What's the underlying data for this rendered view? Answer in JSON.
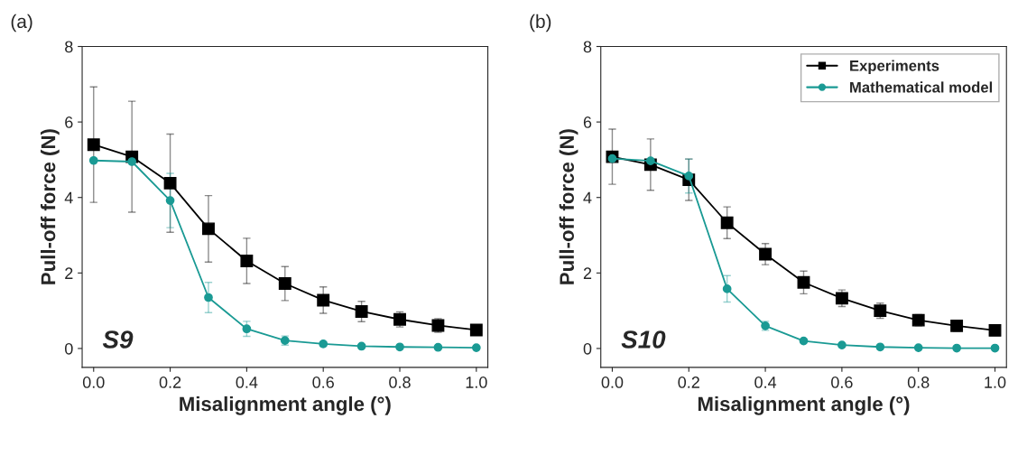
{
  "chart_data": [
    {
      "type": "line",
      "title": "(a)",
      "xlabel": "Misalignment angle (°)",
      "ylabel": "Pull-off force (N)",
      "annotations": [
        "S9"
      ],
      "x": [
        0.0,
        0.1,
        0.2,
        0.3,
        0.4,
        0.5,
        0.6,
        0.7,
        0.8,
        0.9,
        1.0
      ],
      "series": [
        {
          "color": "#000000",
          "marker": "square",
          "values": [
            5.4,
            5.08,
            4.38,
            3.17,
            2.32,
            1.72,
            1.28,
            0.98,
            0.77,
            0.61,
            0.49
          ],
          "errors": [
            1.53,
            1.47,
            1.3,
            0.88,
            0.6,
            0.45,
            0.35,
            0.27,
            0.2,
            0.18,
            0.12
          ]
        },
        {
          "color": "#1a9a94",
          "marker": "circle",
          "values": [
            4.98,
            4.95,
            3.92,
            1.35,
            0.52,
            0.21,
            0.12,
            0.06,
            0.04,
            0.03,
            0.02
          ],
          "errors": [
            null,
            null,
            0.72,
            0.4,
            0.2,
            0.12,
            0.06,
            null,
            null,
            null,
            null
          ]
        }
      ],
      "xlim": [
        -0.03,
        1.03
      ],
      "ylim": [
        -0.5,
        8
      ],
      "xticks": [
        {
          "value": 0,
          "label": "0.0"
        },
        {
          "value": 0.2,
          "label": "0.2"
        },
        {
          "value": 0.4,
          "label": "0.4"
        },
        {
          "value": 0.6,
          "label": "0.6"
        },
        {
          "value": 0.8,
          "label": "0.8"
        },
        {
          "value": 1.0,
          "label": "1.0"
        }
      ],
      "yticks": [
        0,
        2,
        4,
        6,
        8
      ],
      "grid": false,
      "legend": false
    },
    {
      "type": "line",
      "title": "(b)",
      "xlabel": "Misalignment angle (°)",
      "ylabel": "Pull-off force (N)",
      "annotations": [
        "S10"
      ],
      "x": [
        0.0,
        0.1,
        0.2,
        0.3,
        0.4,
        0.5,
        0.6,
        0.7,
        0.8,
        0.9,
        1.0
      ],
      "series": [
        {
          "name": "Experiments",
          "color": "#000000",
          "marker": "square",
          "values": [
            5.08,
            4.87,
            4.47,
            3.33,
            2.5,
            1.75,
            1.33,
            1.0,
            0.75,
            0.6,
            0.48
          ],
          "errors": [
            0.73,
            0.68,
            0.55,
            0.42,
            0.28,
            0.3,
            0.22,
            0.2,
            0.15,
            0.14,
            0.12
          ]
        },
        {
          "name": "Mathematical model",
          "color": "#1a9a94",
          "marker": "circle",
          "values": [
            5.03,
            4.97,
            4.57,
            1.58,
            0.6,
            0.2,
            0.09,
            0.04,
            0.02,
            0.01,
            0.01
          ],
          "errors": [
            null,
            null,
            0.45,
            0.35,
            0.12,
            0.05,
            null,
            null,
            null,
            null,
            null
          ]
        }
      ],
      "xlim": [
        -0.03,
        1.03
      ],
      "ylim": [
        -0.5,
        8
      ],
      "xticks": [
        {
          "value": 0,
          "label": "0.0"
        },
        {
          "value": 0.2,
          "label": "0.2"
        },
        {
          "value": 0.4,
          "label": "0.4"
        },
        {
          "value": 0.6,
          "label": "0.6"
        },
        {
          "value": 0.8,
          "label": "0.8"
        },
        {
          "value": 1.0,
          "label": "1.0"
        }
      ],
      "yticks": [
        0,
        2,
        4,
        6,
        8
      ],
      "grid": false,
      "legend": "top right"
    }
  ]
}
